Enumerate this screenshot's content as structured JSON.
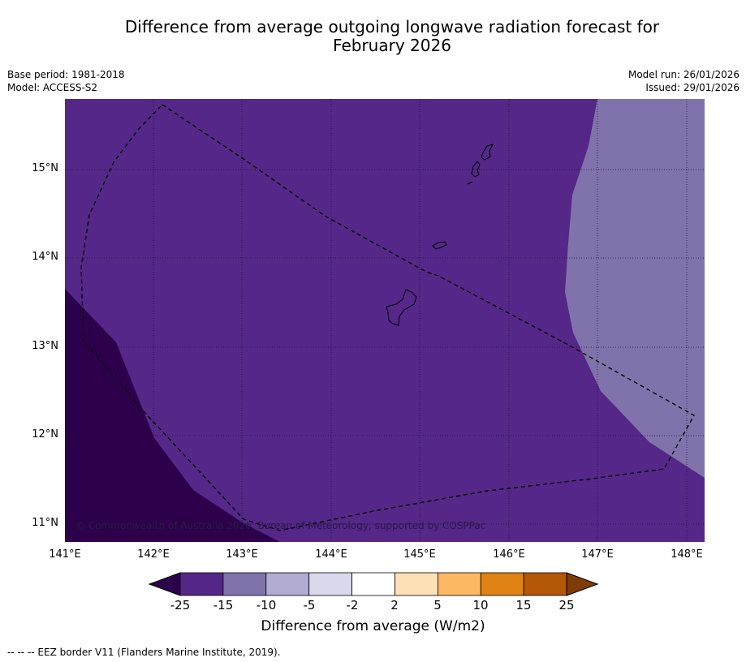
{
  "title_line1": "Difference from average outgoing longwave radiation forecast for",
  "title_line2": "February 2026",
  "meta_left": {
    "base_period": "Base period: 1981-2018",
    "model": "Model: ACCESS-S2"
  },
  "meta_right": {
    "model_run": "Model run: 26/01/2026",
    "issued": "Issued: 29/01/2026"
  },
  "map": {
    "lat_labels": [
      "15°N",
      "14°N",
      "13°N",
      "12°N",
      "11°N"
    ],
    "lon_labels": [
      "141°E",
      "142°E",
      "143°E",
      "144°E",
      "145°E",
      "146°E",
      "147°E",
      "148°E"
    ],
    "attribution": "© Commonwealth of Australia 2026, Bureau of Meteorology, supported by COSPPac",
    "region_values": {
      "main": "-15 to -25",
      "east": "-10 to -15",
      "southwest": "< -25"
    }
  },
  "colorbar": {
    "ticks": [
      "-25",
      "-15",
      "-10",
      "-5",
      "-2",
      "2",
      "5",
      "10",
      "15",
      "25"
    ],
    "colors": [
      "#2d004b",
      "#542788",
      "#8073ac",
      "#b2abd2",
      "#d8daeb",
      "#ffffff",
      "#fee0b6",
      "#fdb863",
      "#e08214",
      "#b35806",
      "#7f3b08"
    ],
    "label": "Difference from average (W/m2)"
  },
  "footnote": "-- -- -- EEZ border V11 (Flanders Marine Institute, 2019)."
}
